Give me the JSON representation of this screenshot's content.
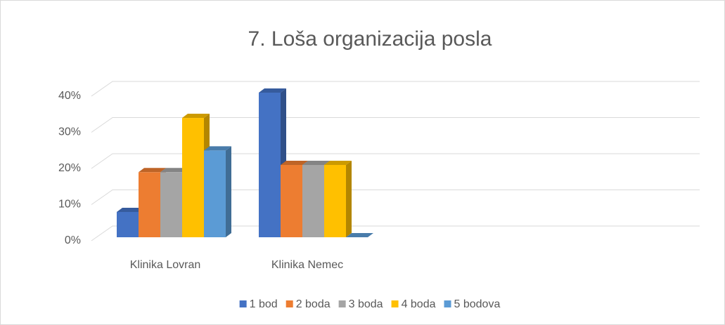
{
  "chart_data": {
    "type": "bar3d",
    "title": "7. Loša organizacija posla",
    "categories": [
      "Klinika Lovran",
      "Klinika Nemec",
      null,
      null
    ],
    "series": [
      {
        "name": "1 bod",
        "color": "#4472c4",
        "values": [
          7,
          40,
          null,
          null
        ]
      },
      {
        "name": "2 boda",
        "color": "#ed7d31",
        "values": [
          18,
          20,
          null,
          null
        ]
      },
      {
        "name": "3 boda",
        "color": "#a5a5a5",
        "values": [
          18,
          20,
          null,
          null
        ]
      },
      {
        "name": "4 boda",
        "color": "#ffc000",
        "values": [
          33,
          20,
          null,
          null
        ]
      },
      {
        "name": "5 bodova",
        "color": "#5b9bd5",
        "values": [
          24,
          0,
          null,
          null
        ]
      }
    ],
    "ylim": [
      0,
      40
    ],
    "yticks": [
      {
        "value": 0,
        "label": "0%"
      },
      {
        "value": 10,
        "label": "10%"
      },
      {
        "value": 20,
        "label": "20%"
      },
      {
        "value": 30,
        "label": "30%"
      },
      {
        "value": 40,
        "label": "40%"
      }
    ],
    "grid": true,
    "legend": "bottom"
  }
}
